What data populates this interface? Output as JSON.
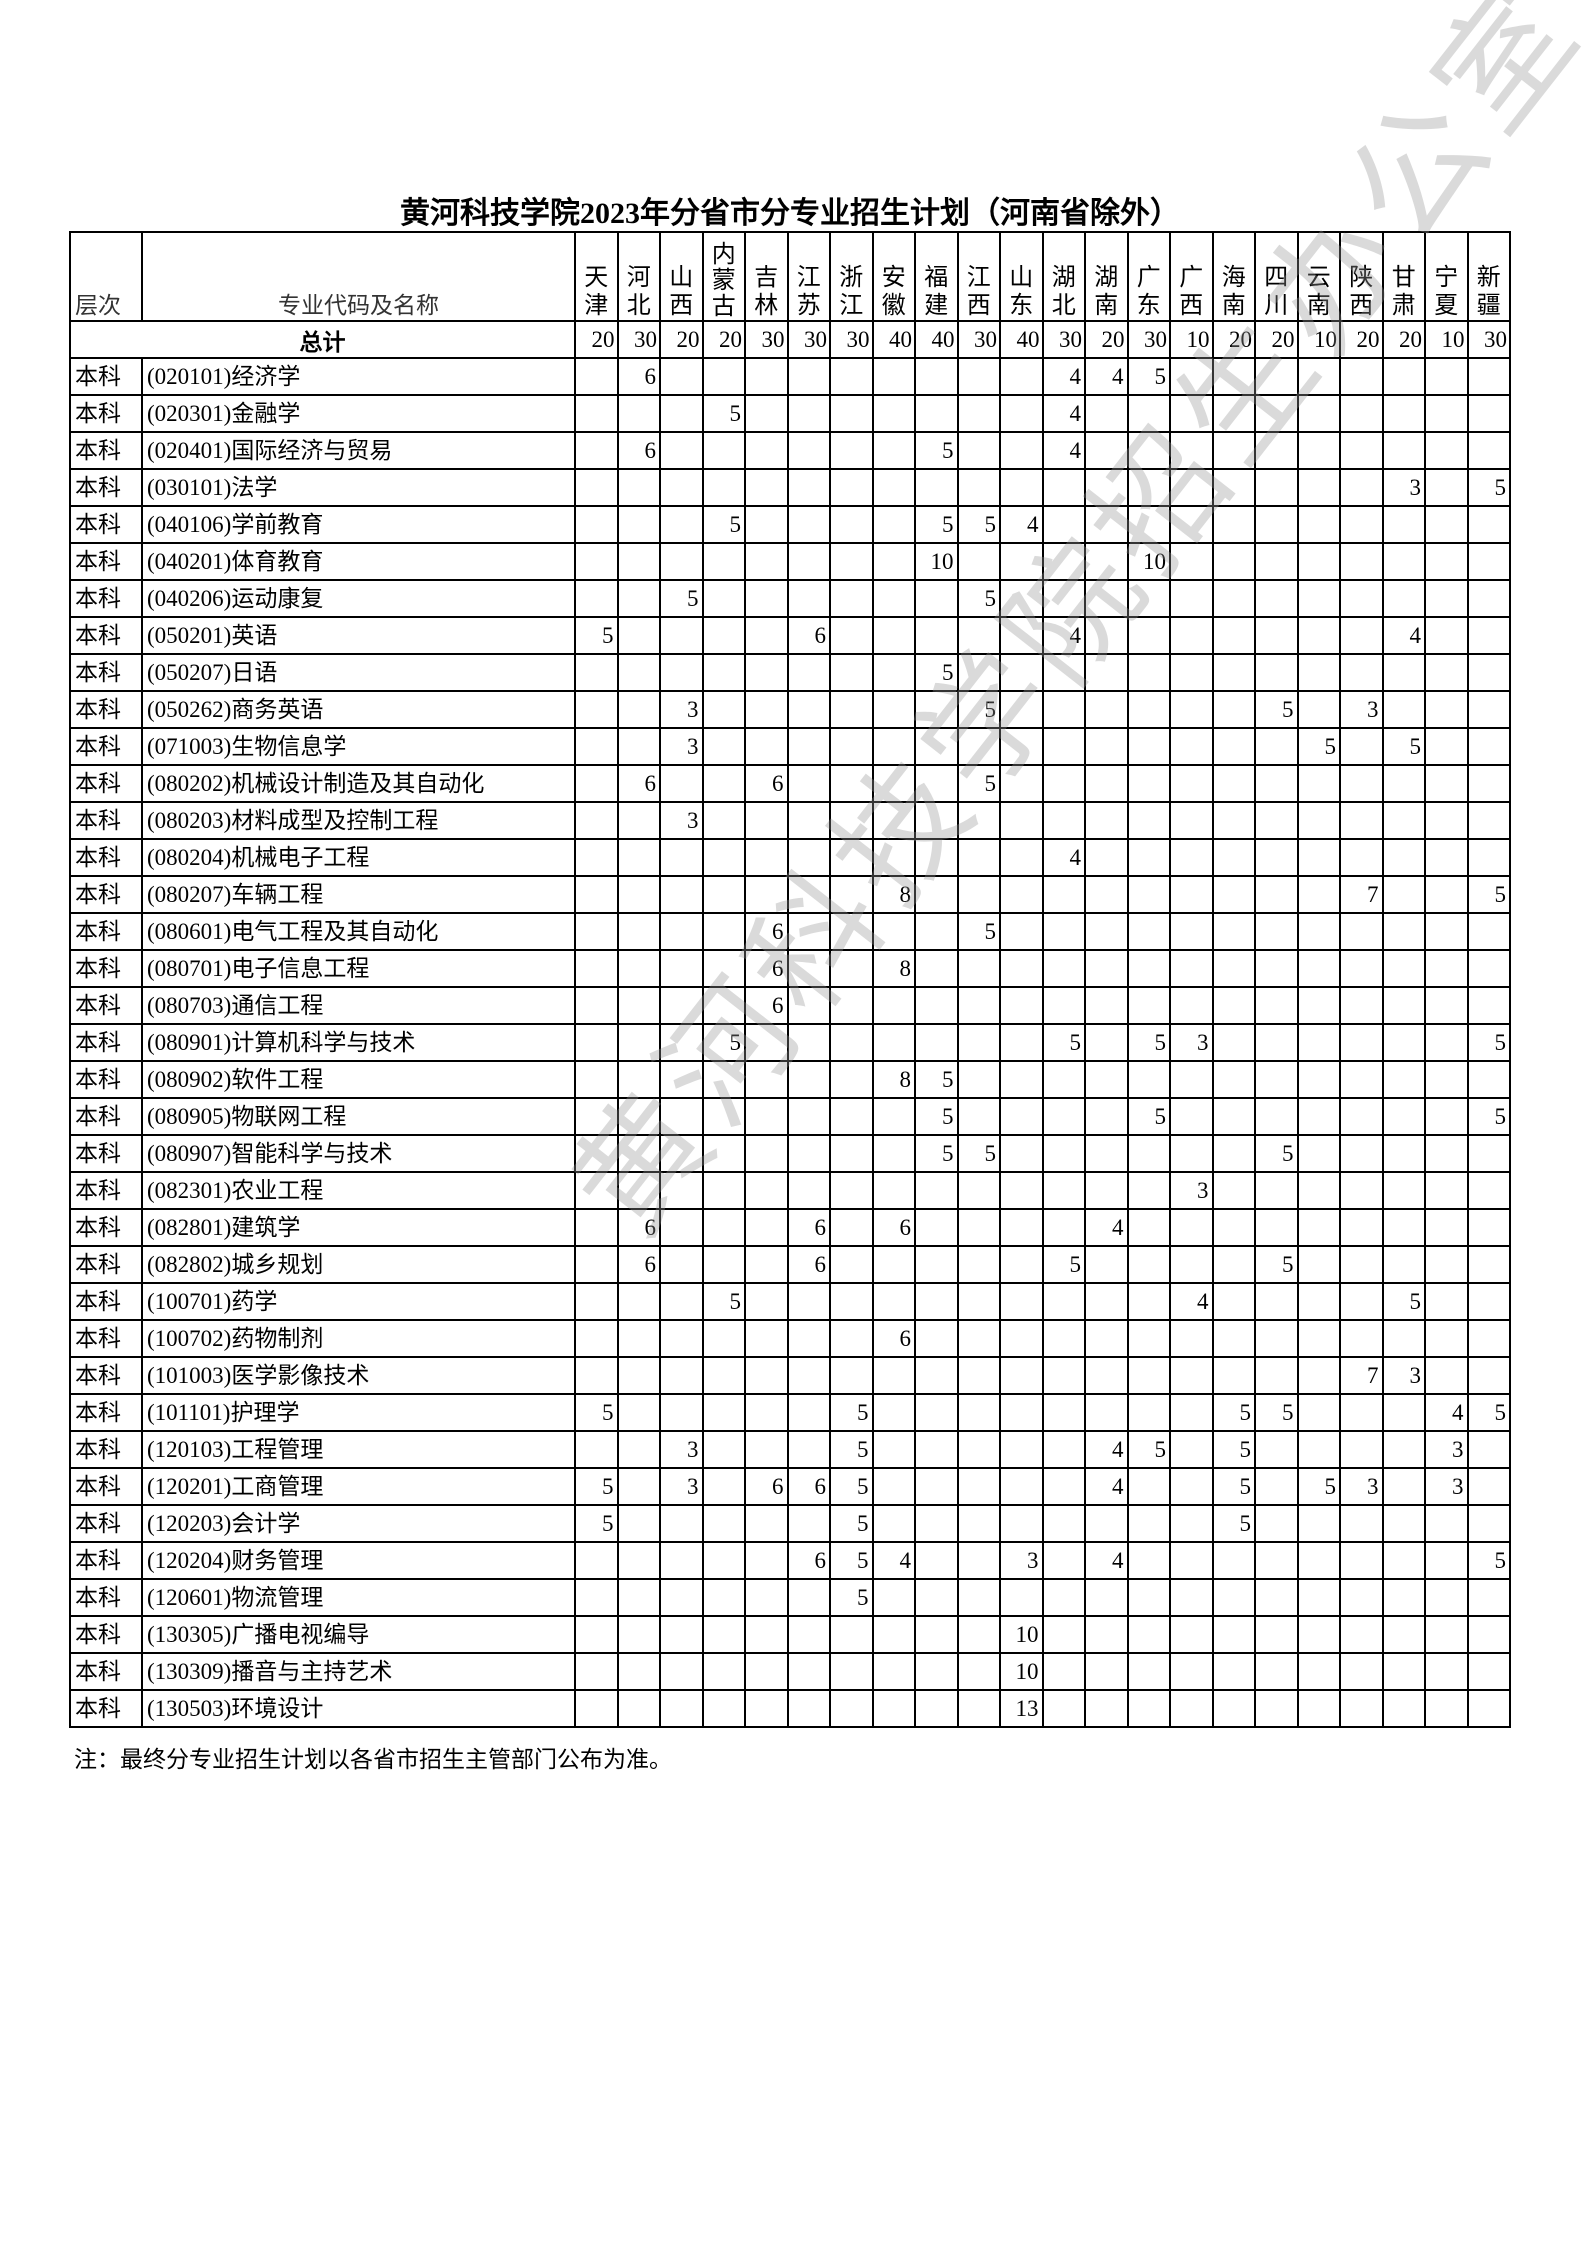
{
  "title": "黄河科技学院2023年分省市分专业招生计划（河南省除外）",
  "header": {
    "level": "层次",
    "name": "专业代码及名称",
    "provinces": [
      "天津",
      "河北",
      "山西",
      "内蒙古",
      "吉林",
      "江苏",
      "浙江",
      "安徽",
      "福建",
      "江西",
      "山东",
      "湖北",
      "湖南",
      "广东",
      "广西",
      "海南",
      "四川",
      "云南",
      "陕西",
      "甘肃",
      "宁夏",
      "新疆"
    ]
  },
  "total": {
    "label": "总计",
    "values": [
      "20",
      "30",
      "20",
      "20",
      "30",
      "30",
      "30",
      "40",
      "40",
      "30",
      "40",
      "30",
      "20",
      "30",
      "10",
      "20",
      "20",
      "10",
      "20",
      "20",
      "10",
      "30"
    ]
  },
  "rows": [
    {
      "level": "本科",
      "name": "(020101)经济学",
      "values": {
        "1": "6",
        "11": "4",
        "12": "4",
        "13": "5"
      }
    },
    {
      "level": "本科",
      "name": "(020301)金融学",
      "values": {
        "3": "5",
        "11": "4"
      }
    },
    {
      "level": "本科",
      "name": "(020401)国际经济与贸易",
      "values": {
        "1": "6",
        "8": "5",
        "11": "4"
      }
    },
    {
      "level": "本科",
      "name": "(030101)法学",
      "values": {
        "19": "3",
        "21": "5"
      }
    },
    {
      "level": "本科",
      "name": "(040106)学前教育",
      "values": {
        "3": "5",
        "8": "5",
        "9": "5",
        "10": "4"
      }
    },
    {
      "level": "本科",
      "name": "(040201)体育教育",
      "values": {
        "8": "10",
        "13": "10"
      }
    },
    {
      "level": "本科",
      "name": "(040206)运动康复",
      "values": {
        "2": "5",
        "9": "5"
      }
    },
    {
      "level": "本科",
      "name": "(050201)英语",
      "values": {
        "0": "5",
        "5": "6",
        "11": "4",
        "19": "4"
      }
    },
    {
      "level": "本科",
      "name": "(050207)日语",
      "values": {
        "8": "5"
      }
    },
    {
      "level": "本科",
      "name": "(050262)商务英语",
      "values": {
        "2": "3",
        "9": "5",
        "16": "5",
        "18": "3"
      }
    },
    {
      "level": "本科",
      "name": "(071003)生物信息学",
      "values": {
        "2": "3",
        "17": "5",
        "19": "5"
      }
    },
    {
      "level": "本科",
      "name": "(080202)机械设计制造及其自动化",
      "values": {
        "1": "6",
        "4": "6",
        "9": "5"
      }
    },
    {
      "level": "本科",
      "name": "(080203)材料成型及控制工程",
      "values": {
        "2": "3"
      }
    },
    {
      "level": "本科",
      "name": "(080204)机械电子工程",
      "values": {
        "11": "4"
      }
    },
    {
      "level": "本科",
      "name": "(080207)车辆工程",
      "values": {
        "7": "8",
        "18": "7",
        "21": "5"
      }
    },
    {
      "level": "本科",
      "name": "(080601)电气工程及其自动化",
      "values": {
        "4": "6",
        "9": "5"
      }
    },
    {
      "level": "本科",
      "name": "(080701)电子信息工程",
      "values": {
        "4": "6",
        "7": "8"
      }
    },
    {
      "level": "本科",
      "name": "(080703)通信工程",
      "values": {
        "4": "6"
      }
    },
    {
      "level": "本科",
      "name": "(080901)计算机科学与技术",
      "values": {
        "3": "5",
        "11": "5",
        "13": "5",
        "14": "3",
        "21": "5"
      }
    },
    {
      "level": "本科",
      "name": "(080902)软件工程",
      "values": {
        "7": "8",
        "8": "5"
      }
    },
    {
      "level": "本科",
      "name": "(080905)物联网工程",
      "values": {
        "8": "5",
        "13": "5",
        "21": "5"
      }
    },
    {
      "level": "本科",
      "name": "(080907)智能科学与技术",
      "values": {
        "8": "5",
        "9": "5",
        "16": "5"
      }
    },
    {
      "level": "本科",
      "name": "(082301)农业工程",
      "values": {
        "14": "3"
      }
    },
    {
      "level": "本科",
      "name": "(082801)建筑学",
      "values": {
        "1": "6",
        "5": "6",
        "7": "6",
        "12": "4"
      }
    },
    {
      "level": "本科",
      "name": "(082802)城乡规划",
      "values": {
        "1": "6",
        "5": "6",
        "11": "5",
        "16": "5"
      }
    },
    {
      "level": "本科",
      "name": "(100701)药学",
      "values": {
        "3": "5",
        "14": "4",
        "19": "5"
      }
    },
    {
      "level": "本科",
      "name": "(100702)药物制剂",
      "values": {
        "7": "6"
      }
    },
    {
      "level": "本科",
      "name": "(101003)医学影像技术",
      "values": {
        "18": "7",
        "19": "3"
      }
    },
    {
      "level": "本科",
      "name": "(101101)护理学",
      "values": {
        "0": "5",
        "6": "5",
        "15": "5",
        "16": "5",
        "20": "4",
        "21": "5"
      }
    },
    {
      "level": "本科",
      "name": "(120103)工程管理",
      "values": {
        "2": "3",
        "6": "5",
        "12": "4",
        "13": "5",
        "15": "5",
        "20": "3"
      }
    },
    {
      "level": "本科",
      "name": "(120201)工商管理",
      "values": {
        "0": "5",
        "2": "3",
        "4": "6",
        "5": "6",
        "6": "5",
        "12": "4",
        "15": "5",
        "17": "5",
        "18": "3",
        "20": "3"
      }
    },
    {
      "level": "本科",
      "name": "(120203)会计学",
      "values": {
        "0": "5",
        "6": "5",
        "15": "5"
      }
    },
    {
      "level": "本科",
      "name": "(120204)财务管理",
      "values": {
        "5": "6",
        "6": "5",
        "7": "4",
        "10": "3",
        "12": "4",
        "21": "5"
      }
    },
    {
      "level": "本科",
      "name": "(120601)物流管理",
      "values": {
        "6": "5"
      }
    },
    {
      "level": "本科",
      "name": "(130305)广播电视编导",
      "values": {
        "10": "10"
      }
    },
    {
      "level": "本科",
      "name": "(130309)播音与主持艺术",
      "values": {
        "10": "10"
      }
    },
    {
      "level": "本科",
      "name": "(130503)环境设计",
      "values": {
        "10": "13"
      }
    }
  ],
  "note": "注：最终分专业招生计划以各省市招生主管部门公布为准。",
  "watermark": "黄河科技学院招生办公室"
}
